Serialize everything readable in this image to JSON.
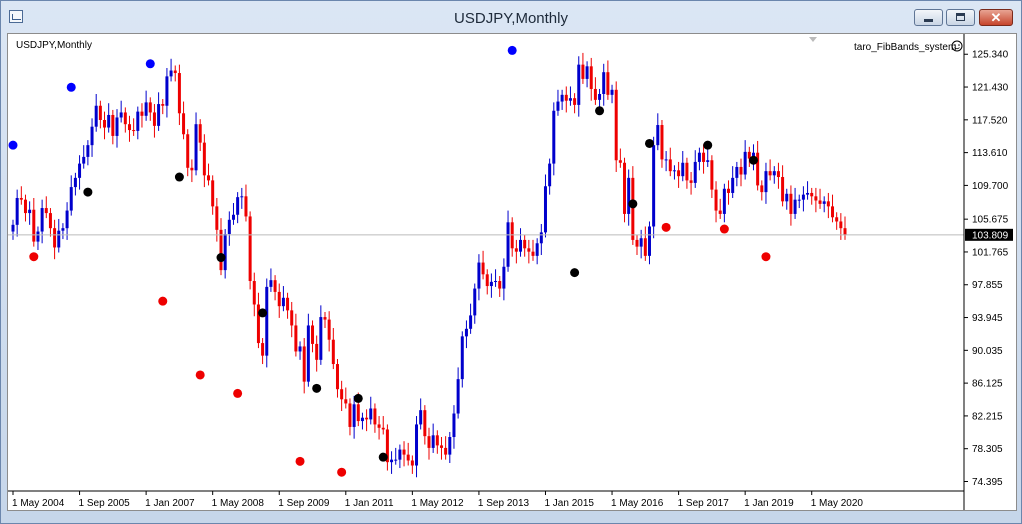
{
  "window": {
    "title": "USDJPY,Monthly",
    "minimize_icon": "minimize-icon",
    "maximize_icon": "maximize-icon",
    "close_icon": "close-icon"
  },
  "chart": {
    "symbol_label": "USDJPY,Monthly",
    "indicator_label": "taro_FibBands_system",
    "indicator_icon": "smiley-icon",
    "current_price": "103.809",
    "colors": {
      "bull": "#0000cc",
      "bear": "#ee0000",
      "marker_black": "#000000",
      "marker_blue": "#0000ff",
      "marker_red": "#ee0000",
      "price_line": "#bbbbbb"
    }
  },
  "chart_data": {
    "type": "candlestick",
    "x_tick_labels": [
      "1 May 2004",
      "1 Sep 2005",
      "1 Jan 2007",
      "1 May 2008",
      "1 Sep 2009",
      "1 Jan 2011",
      "1 May 2012",
      "1 Sep 2013",
      "1 Jan 2015",
      "1 May 2016",
      "1 Sep 2017",
      "1 Jan 2019",
      "1 May 2020"
    ],
    "y_tick_labels": [
      "125.340",
      "121.430",
      "117.520",
      "113.610",
      "109.700",
      "105.675",
      "101.765",
      "97.855",
      "93.945",
      "90.035",
      "86.125",
      "82.215",
      "78.305",
      "74.395"
    ],
    "ylim": [
      73.5,
      126.8
    ],
    "current_price": 103.809,
    "grid": false,
    "monthly_closes": [
      105.0,
      108.2,
      108.0,
      106.4,
      106.8,
      103.0,
      104.2,
      107.0,
      106.4,
      104.6,
      102.3,
      104.3,
      104.6,
      106.7,
      109.5,
      110.6,
      112.3,
      113.1,
      114.5,
      116.7,
      119.2,
      117.5,
      116.6,
      118.1,
      115.6,
      117.8,
      118.4,
      117.0,
      116.3,
      116.2,
      118.5,
      118.0,
      119.6,
      118.4,
      116.8,
      119.4,
      119.2,
      122.7,
      123.4,
      123.1,
      118.3,
      115.8,
      111.8,
      111.5,
      117.0,
      114.8,
      110.9,
      110.3,
      107.2,
      104.4,
      99.6,
      103.9,
      105.6,
      106.2,
      108.3,
      108.4,
      106.0,
      98.3,
      95.5,
      90.9,
      89.4,
      97.6,
      98.4,
      97.0,
      95.3,
      96.3,
      94.8,
      93.0,
      89.9,
      90.5,
      86.3,
      93.0,
      90.8,
      88.9,
      94.0,
      93.7,
      91.3,
      88.4,
      85.4,
      84.2,
      83.7,
      80.9,
      83.6,
      81.6,
      82.0,
      81.8,
      83.1,
      81.2,
      80.8,
      80.6,
      76.7,
      77.0,
      77.0,
      78.2,
      77.6,
      76.9,
      76.3,
      81.2,
      82.9,
      79.8,
      78.4,
      79.9,
      78.7,
      78.4,
      77.6,
      79.7,
      82.5,
      86.6,
      91.7,
      92.6,
      94.2,
      97.4,
      100.5,
      99.1,
      97.7,
      98.2,
      98.3,
      97.4,
      100.0,
      105.3,
      102.2,
      101.8,
      103.2,
      102.2,
      101.8,
      101.3,
      102.8,
      104.1,
      109.6,
      112.3,
      118.6,
      119.7,
      120.5,
      119.8,
      120.1,
      119.3,
      124.1,
      122.4,
      123.9,
      121.2,
      119.9,
      120.6,
      123.2,
      120.5,
      121.1,
      112.7,
      112.4,
      106.3,
      110.6,
      103.2,
      102.4,
      103.4,
      101.3,
      104.8,
      114.5,
      116.9,
      112.8,
      112.8,
      111.4,
      111.5,
      110.8,
      112.4,
      110.3,
      110.0,
      112.5,
      113.6,
      112.5,
      112.7,
      109.2,
      106.7,
      106.3,
      109.3,
      108.8,
      110.6,
      111.9,
      111.0,
      113.7,
      112.9,
      113.6,
      109.7,
      108.9,
      111.4,
      110.9,
      111.4,
      110.7,
      107.8,
      108.7,
      106.3,
      108.0,
      108.0,
      108.6,
      108.8,
      108.4,
      107.9,
      107.5,
      107.8,
      107.2,
      105.9,
      105.4,
      104.6,
      103.8
    ],
    "marker_points": [
      {
        "index": 0,
        "price": 114.5,
        "color": "blue"
      },
      {
        "index": 5,
        "price": 101.2,
        "color": "red"
      },
      {
        "index": 14,
        "price": 121.4,
        "color": "blue"
      },
      {
        "index": 18,
        "price": 108.9,
        "color": "black"
      },
      {
        "index": 33,
        "price": 124.2,
        "color": "blue"
      },
      {
        "index": 36,
        "price": 95.9,
        "color": "red"
      },
      {
        "index": 40,
        "price": 110.7,
        "color": "black"
      },
      {
        "index": 45,
        "price": 87.1,
        "color": "red"
      },
      {
        "index": 50,
        "price": 101.1,
        "color": "black"
      },
      {
        "index": 54,
        "price": 84.9,
        "color": "red"
      },
      {
        "index": 60,
        "price": 94.5,
        "color": "black"
      },
      {
        "index": 69,
        "price": 76.8,
        "color": "red"
      },
      {
        "index": 73,
        "price": 85.5,
        "color": "black"
      },
      {
        "index": 79,
        "price": 75.5,
        "color": "red"
      },
      {
        "index": 83,
        "price": 84.3,
        "color": "black"
      },
      {
        "index": 89,
        "price": 77.3,
        "color": "black"
      },
      {
        "index": 120,
        "price": 125.8,
        "color": "blue"
      },
      {
        "index": 135,
        "price": 99.3,
        "color": "black"
      },
      {
        "index": 141,
        "price": 118.6,
        "color": "black"
      },
      {
        "index": 149,
        "price": 107.5,
        "color": "black"
      },
      {
        "index": 153,
        "price": 114.7,
        "color": "black"
      },
      {
        "index": 157,
        "price": 104.7,
        "color": "red"
      },
      {
        "index": 167,
        "price": 114.5,
        "color": "black"
      },
      {
        "index": 171,
        "price": 104.5,
        "color": "red"
      },
      {
        "index": 178,
        "price": 112.7,
        "color": "black"
      },
      {
        "index": 181,
        "price": 101.2,
        "color": "red"
      }
    ]
  }
}
